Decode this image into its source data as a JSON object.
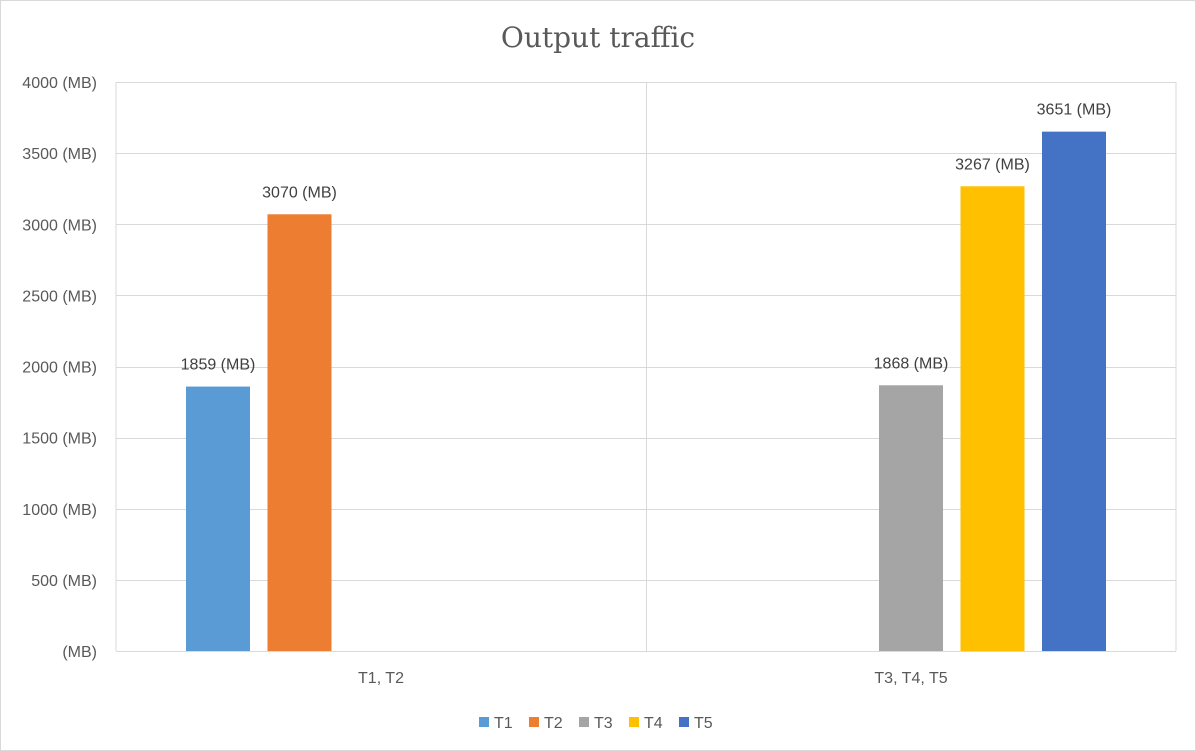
{
  "chart_data": {
    "type": "bar",
    "title": "Output traffic",
    "unit_suffix": " (MB)",
    "zero_tick_label": "(MB)",
    "ylim": [
      0,
      4000
    ],
    "ytick_step": 500,
    "grid": true,
    "legend_position": "bottom",
    "categories": [
      "T1, T2",
      "T3, T4, T5"
    ],
    "series": [
      {
        "name": "T1",
        "color": "#5B9BD5",
        "category": "T1, T2",
        "value": 1859,
        "label": "1859 (MB)"
      },
      {
        "name": "T2",
        "color": "#ED7D31",
        "category": "T1, T2",
        "value": 3070,
        "label": "3070 (MB)"
      },
      {
        "name": "T3",
        "color": "#A5A5A5",
        "category": "T3, T4, T5",
        "value": 1868,
        "label": "1868 (MB)"
      },
      {
        "name": "T4",
        "color": "#FFC000",
        "category": "T3, T4, T5",
        "value": 3267,
        "label": "3267 (MB)"
      },
      {
        "name": "T5",
        "color": "#4472C4",
        "category": "T3, T4, T5",
        "value": 3651,
        "label": "3651 (MB)"
      }
    ]
  }
}
